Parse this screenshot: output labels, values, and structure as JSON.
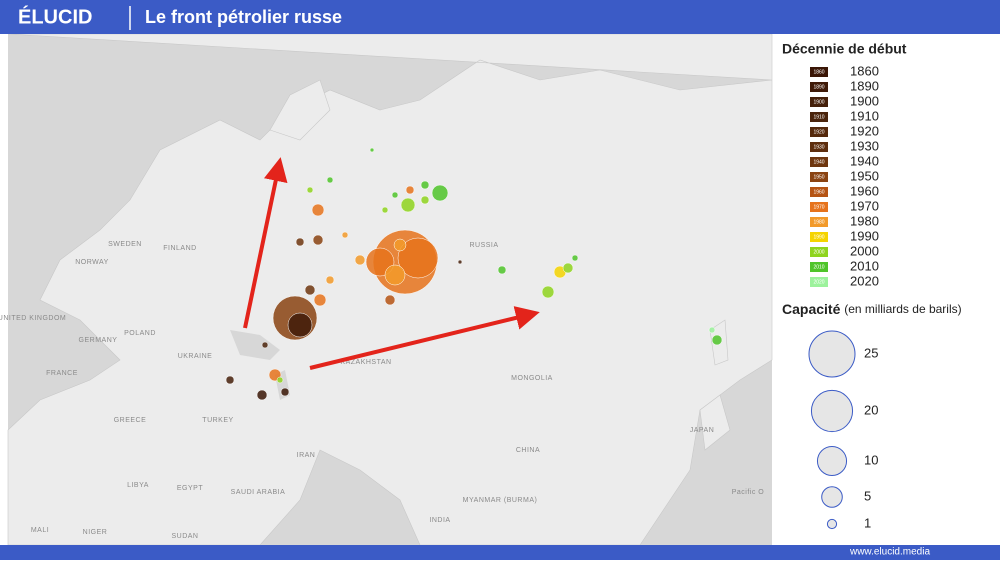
{
  "header": {
    "brand": "ÉLUCID",
    "title": "Le front pétrolier russe"
  },
  "legend": {
    "decade_title": "Décennie de début",
    "decades": [
      {
        "label": "1860",
        "color": "#3a1606"
      },
      {
        "label": "1890",
        "color": "#3f1a08"
      },
      {
        "label": "1900",
        "color": "#45200a"
      },
      {
        "label": "1910",
        "color": "#4b240c"
      },
      {
        "label": "1920",
        "color": "#55290c"
      },
      {
        "label": "1930",
        "color": "#5e2e0e"
      },
      {
        "label": "1940",
        "color": "#6e360f"
      },
      {
        "label": "1950",
        "color": "#8a4312"
      },
      {
        "label": "1960",
        "color": "#b55414"
      },
      {
        "label": "1970",
        "color": "#e6731c"
      },
      {
        "label": "1980",
        "color": "#f29a2a"
      },
      {
        "label": "1990",
        "color": "#f5d400"
      },
      {
        "label": "2000",
        "color": "#8fd41e"
      },
      {
        "label": "2010",
        "color": "#4fc42a"
      },
      {
        "label": "2020",
        "color": "#9cf29c"
      }
    ],
    "capacity_title": "Capacité",
    "capacity_subtitle": "(en milliards de barils)",
    "capacity_sizes": [
      25,
      20,
      10,
      5,
      1
    ]
  },
  "map": {
    "labels": [
      "SWEDEN",
      "FINLAND",
      "NORWAY",
      "RUSSIA",
      "UNITED KINGDOM",
      "GERMANY",
      "POLAND",
      "UKRAINE",
      "FRANCE",
      "KAZAKHSTAN",
      "MONGOLIA",
      "CHINA",
      "JAPAN",
      "TURKEY",
      "GREECE",
      "IRAN",
      "LIBYA",
      "EGYPT",
      "SAUDI ARABIA",
      "MALI",
      "NIGER",
      "SUDAN",
      "MYANMAR (BURMA)",
      "INDIA",
      "Pacific O"
    ]
  },
  "footer": {
    "url": "www.elucid.media"
  }
}
